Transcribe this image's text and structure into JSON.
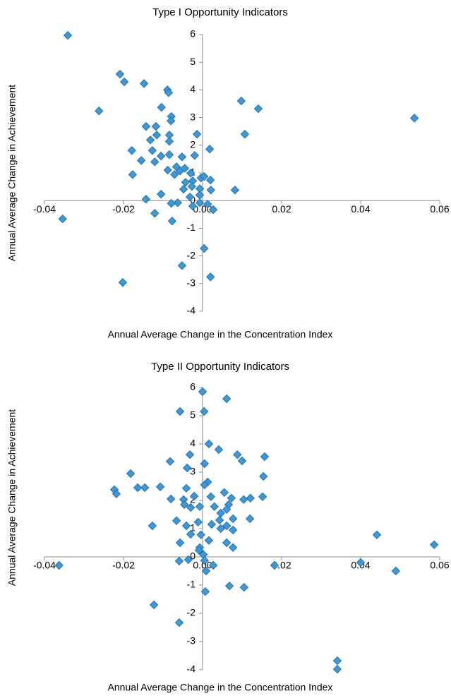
{
  "chart_data": [
    {
      "type": "scatter",
      "title": "Type I Opportunity Indicators",
      "x_label": "Annual  Average Change in the Concentration  Index",
      "y_label": "Annual Average Change in Achievement",
      "color": "#3a9ad9",
      "xlim": [
        -0.04,
        0.06
      ],
      "ylim": [
        -4,
        6
      ],
      "xticks": [
        -0.04,
        -0.02,
        {
          "value": 0,
          "label": "0.00"
        },
        0.02,
        0.04,
        0.06
      ],
      "yticks": [
        -4,
        -3,
        -2,
        -1,
        0,
        1,
        2,
        3,
        4,
        5,
        6
      ],
      "x": [
        -0.0341,
        -0.0209,
        -0.0198,
        -0.0148,
        -0.0089,
        -0.0086,
        -0.0262,
        0.0098,
        0.0141,
        0.0536,
        -0.0104,
        -0.0079,
        -0.008,
        -0.0143,
        -0.0118,
        -0.0116,
        -0.0132,
        -0.0084,
        -0.0084,
        -0.0014,
        0.0107,
        -0.0179,
        -0.0127,
        0.0018,
        -0.0105,
        -0.0084,
        -0.0052,
        -0.002,
        -0.0155,
        -0.0121,
        -0.0177,
        -0.0088,
        -0.0066,
        -0.0057,
        -0.0045,
        -0.003,
        -0.0071,
        -0.0043,
        -0.0025,
        -0.0004,
        0.0004,
        0.002,
        -0.0048,
        -0.0027,
        -0.0007,
        0.0021,
        0.0082,
        -0.0032,
        -0.0007,
        -0.0105,
        -0.0143,
        -0.0079,
        -0.0063,
        -0.0007,
        0.0013,
        -0.0025,
        0.0027,
        -0.0121,
        -0.0354,
        -0.0077,
        0.0004,
        -0.0052,
        -0.0202,
        0.002
      ],
      "values": [
        5.97,
        4.57,
        4.29,
        4.23,
        4.0,
        3.9,
        3.24,
        3.6,
        3.32,
        2.98,
        3.37,
        3.04,
        2.88,
        2.68,
        2.68,
        2.37,
        2.19,
        2.37,
        2.14,
        2.4,
        2.4,
        1.81,
        1.81,
        1.86,
        1.61,
        1.66,
        1.58,
        1.63,
        1.45,
        1.4,
        0.94,
        1.1,
        1.22,
        1.07,
        1.17,
        0.99,
        0.94,
        0.66,
        0.71,
        0.82,
        0.87,
        0.74,
        0.41,
        0.51,
        0.43,
        0.38,
        0.38,
        0.13,
        0.2,
        0.23,
        0.05,
        -0.1,
        -0.08,
        -0.08,
        -0.13,
        -0.2,
        -0.33,
        -0.46,
        -0.66,
        -0.74,
        -1.73,
        -2.35,
        -2.96,
        -2.76
      ]
    },
    {
      "type": "scatter",
      "title": "Type II Opportunity Indicators",
      "x_label": "Annual Average Change in the Concentration Index",
      "y_label": "Annual Average Change in Achievement",
      "color": "#3a9ad9",
      "xlim": [
        -0.04,
        0.06
      ],
      "ylim": [
        -4,
        6
      ],
      "xticks": [
        -0.04,
        -0.02,
        {
          "value": 0,
          "label": "0.00"
        },
        0.02,
        0.04,
        0.06
      ],
      "yticks": [
        -4,
        -3,
        -2,
        -1,
        0,
        1,
        2,
        3,
        4,
        5,
        6
      ],
      "x": [
        0,
        -0.0057,
        0.0004,
        0.0061,
        -0.0032,
        0.0016,
        0.0041,
        0.0088,
        0.01,
        -0.0082,
        0.0157,
        0.0005,
        -0.0039,
        0.0013,
        -0.0182,
        0.0154,
        0.0005,
        -0.0041,
        0.0152,
        -0.0223,
        -0.0218,
        -0.0164,
        -0.0146,
        -0.0107,
        -0.0021,
        -0.0048,
        -0.0007,
        0.0021,
        0.0055,
        0.0073,
        0.0066,
        0.0104,
        0.0121,
        -0.008,
        -0.0046,
        -0.003,
        0.003,
        0.0046,
        0.0061,
        0.0043,
        0.0077,
        0.012,
        -0.0127,
        -0.0066,
        -0.0041,
        -0.0011,
        0.0023,
        0.0046,
        0.0061,
        0.0077,
        -0.003,
        -0.0057,
        -0.0004,
        0.0016,
        0.0061,
        0.0077,
        0.0441,
        0.0586,
        -0.0007,
        0.0002,
        -0.0009,
        -0.0059,
        -0.0036,
        0.0005,
        0.0027,
        -0.0363,
        0.0182,
        0.04,
        0.0489,
        0.0009,
        0.0068,
        0.0105,
        0.0007,
        -0.0123,
        -0.0059,
        0.0341,
        0.0341
      ],
      "values": [
        5.85,
        5.15,
        5.15,
        5.6,
        3.62,
        4.0,
        3.8,
        3.62,
        3.4,
        3.38,
        3.55,
        3.3,
        3.15,
        2.65,
        2.95,
        2.85,
        2.55,
        2.43,
        2.13,
        2.38,
        2.23,
        2.45,
        2.45,
        2.48,
        2.15,
        2.03,
        1.78,
        2.13,
        2.28,
        2.08,
        1.85,
        2.03,
        2.08,
        2.05,
        1.85,
        1.75,
        1.78,
        1.55,
        1.68,
        1.3,
        1.35,
        1.35,
        1.1,
        1.28,
        1.1,
        1.23,
        1.15,
        1.0,
        1.1,
        0.95,
        0.8,
        0.5,
        0.78,
        0.58,
        0.5,
        0.33,
        0.78,
        0.43,
        0.33,
        0.08,
        0.23,
        -0.15,
        -0.1,
        -0.13,
        -0.3,
        -0.3,
        -0.3,
        -0.2,
        -0.5,
        -0.5,
        -1.03,
        -1.08,
        -1.23,
        -1.7,
        -2.33,
        -3.68,
        -3.98
      ]
    }
  ]
}
